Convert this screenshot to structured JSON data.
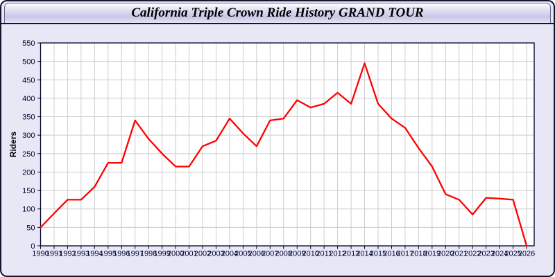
{
  "window": {
    "title": "California Triple Crown Ride History GRAND TOUR"
  },
  "chart_data": {
    "type": "line",
    "title": "California Triple Crown Ride History GRAND TOUR",
    "xlabel": "",
    "ylabel": "Riders",
    "x": [
      1990,
      1991,
      1992,
      1993,
      1994,
      1995,
      1996,
      1997,
      1998,
      1999,
      2000,
      2001,
      2002,
      2003,
      2004,
      2005,
      2006,
      2007,
      2008,
      2009,
      2010,
      2011,
      2012,
      2013,
      2014,
      2015,
      2016,
      2017,
      2018,
      2019,
      2020,
      2021,
      2022,
      2023,
      2024,
      2025,
      2026
    ],
    "series": [
      {
        "name": "Riders",
        "color": "#ff0000",
        "values": [
          50,
          88,
          125,
          125,
          160,
          225,
          225,
          340,
          290,
          250,
          215,
          215,
          270,
          285,
          345,
          305,
          270,
          340,
          345,
          395,
          375,
          385,
          415,
          385,
          495,
          385,
          345,
          320,
          265,
          215,
          140,
          125,
          85,
          130,
          128,
          125,
          0
        ]
      }
    ],
    "ylim": [
      0,
      550
    ],
    "yticks": [
      0,
      50,
      100,
      150,
      200,
      250,
      300,
      350,
      400,
      450,
      500,
      550
    ],
    "grid": true,
    "legend": "none",
    "plot_bg": "#ffffff",
    "grid_color": "#cccccc",
    "axis_color": "#000028",
    "label_color": "#000033"
  },
  "colors": {
    "page_bg": "#e7e7f6",
    "window_border": "#14142e",
    "titlebar_top": "#ffffff",
    "titlebar_bottom": "#c7c7e8",
    "line": "#ff0000"
  }
}
